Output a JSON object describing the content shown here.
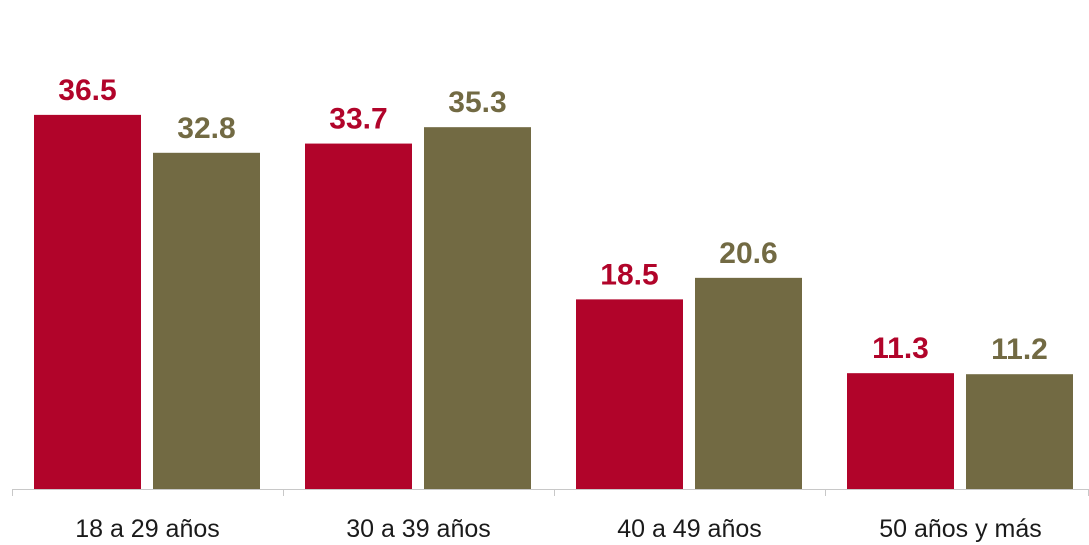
{
  "chart_data": {
    "type": "bar",
    "categories": [
      "18 a 29 años",
      "30 a 39 años",
      "40 a 49 años",
      "50 años y más"
    ],
    "series": [
      {
        "values": [
          36.5,
          33.7,
          18.5,
          11.3
        ],
        "color": "#b1042a"
      },
      {
        "values": [
          32.8,
          35.3,
          20.6,
          11.2
        ],
        "color": "#726a43"
      }
    ],
    "ylim": [
      0,
      40
    ],
    "grid": false,
    "legend": "none",
    "axis_color": "#c8c8c8"
  }
}
